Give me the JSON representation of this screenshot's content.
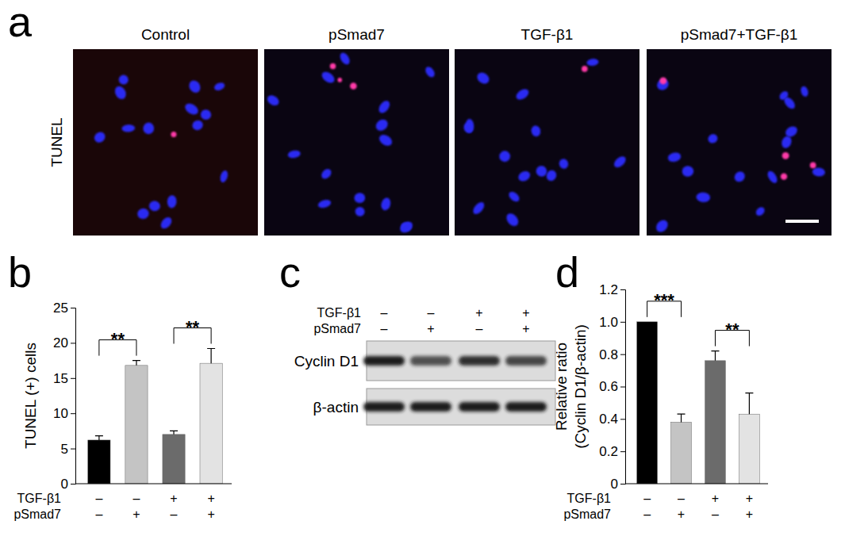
{
  "figure": {
    "panel_labels": [
      "a",
      "b",
      "c",
      "d"
    ],
    "panel_a": {
      "row_label": "TUNEL",
      "titles": [
        "Control",
        "pSmad7",
        "TGF-β1",
        "pSmad7+TGF-β1"
      ]
    },
    "panel_c": {
      "condition_rows": [
        {
          "label": "TGF-β1",
          "values": [
            "–",
            "–",
            "+",
            "+"
          ]
        },
        {
          "label": "pSmad7",
          "values": [
            "–",
            "+",
            "–",
            "+"
          ]
        }
      ],
      "bands": [
        "Cyclin D1",
        "β-actin"
      ]
    }
  },
  "chart_data": [
    {
      "type": "bar",
      "ylabel": [
        "TUNEL (+) cells"
      ],
      "categories": [
        null,
        null,
        null,
        null
      ],
      "values": [
        6.2,
        16.8,
        7.0,
        17.1
      ],
      "errors": [
        0.6,
        0.7,
        0.5,
        2.1
      ],
      "colors": [
        "#000000",
        "#c4c4c4",
        "#6b6b6b",
        "#e3e3e3"
      ],
      "ylim": [
        0,
        25
      ],
      "yticks": [
        0,
        5,
        10,
        15,
        20,
        25
      ],
      "condition_rows": [
        {
          "label": "TGF-β1",
          "values": [
            "–",
            "–",
            "+",
            "+"
          ]
        },
        {
          "label": "pSmad7",
          "values": [
            "–",
            "+",
            "–",
            "+"
          ]
        }
      ],
      "annotations": [
        {
          "text": "**",
          "between": [
            0,
            1
          ]
        },
        {
          "text": "**",
          "between": [
            2,
            3
          ]
        }
      ]
    },
    {
      "type": "bar",
      "ylabel": [
        "Relative ratio",
        "(Cyclin D1/β-actin)"
      ],
      "categories": [
        null,
        null,
        null,
        null
      ],
      "values": [
        1.0,
        0.38,
        0.76,
        0.43
      ],
      "errors": [
        null,
        0.05,
        0.06,
        0.13
      ],
      "colors": [
        "#000000",
        "#c4c4c4",
        "#6b6b6b",
        "#e3e3e3"
      ],
      "ylim": [
        0,
        1.2
      ],
      "yticks": [
        0,
        0.2,
        0.4,
        0.6,
        0.8,
        {
          "value": 1.0,
          "label": "1.0"
        },
        1.2
      ],
      "condition_rows": [
        {
          "label": "TGF-β1",
          "values": [
            "–",
            "–",
            "+",
            "+"
          ]
        },
        {
          "label": "pSmad7",
          "values": [
            "–",
            "+",
            "–",
            "+"
          ]
        }
      ],
      "annotations": [
        {
          "text": "***",
          "between": [
            0,
            1
          ]
        },
        {
          "text": "**",
          "between": [
            2,
            3
          ]
        }
      ]
    }
  ]
}
